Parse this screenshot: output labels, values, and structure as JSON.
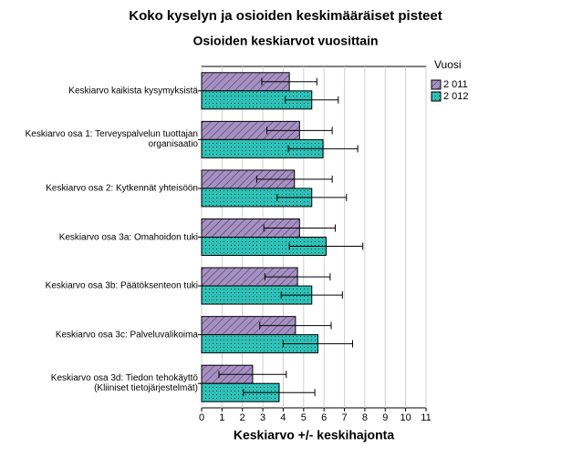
{
  "chart_data": {
    "type": "barh",
    "title": "Koko kyselyn ja osioiden keskimääräiset pisteet",
    "subtitle": "Osioiden keskiarvot vuosittain",
    "xlabel": "Keskiarvo +/- keskihajonta",
    "legend_title": "Vuosi",
    "categories": [
      "Keskiarvo kaikista kysymyksistä",
      "Keskiarvo osa 1: Terveyspalvelun tuottajan\norganisaatio",
      "Keskiarvo osa 2: Kytkennät yhteisöön",
      "Keskiarvo osa 3a: Omahoidon tuki",
      "Keskiarvo osa 3b: Päätöksenteon tuki",
      "Keskiarvo osa 3c: Palveluvalikoima",
      "Keskiarvo osa 3d: Tiedon tehokäyttö\n(Kliiniset tietojärjestelmät)"
    ],
    "series": [
      {
        "name": "2 011",
        "color": "#a68fc4",
        "values": [
          4.3,
          4.8,
          4.55,
          4.8,
          4.7,
          4.6,
          2.5
        ],
        "errors": [
          1.35,
          1.6,
          1.85,
          1.75,
          1.6,
          1.75,
          1.65
        ]
      },
      {
        "name": "2 012",
        "color": "#2ec0b6",
        "values": [
          5.4,
          5.95,
          5.4,
          6.1,
          5.4,
          5.7,
          3.8
        ],
        "errors": [
          1.3,
          1.7,
          1.7,
          1.8,
          1.5,
          1.7,
          1.75
        ]
      }
    ],
    "xlim": [
      0,
      11
    ],
    "xticks": [
      0,
      1,
      2,
      3,
      4,
      5,
      6,
      7,
      8,
      9,
      10,
      11
    ],
    "grid": true
  }
}
